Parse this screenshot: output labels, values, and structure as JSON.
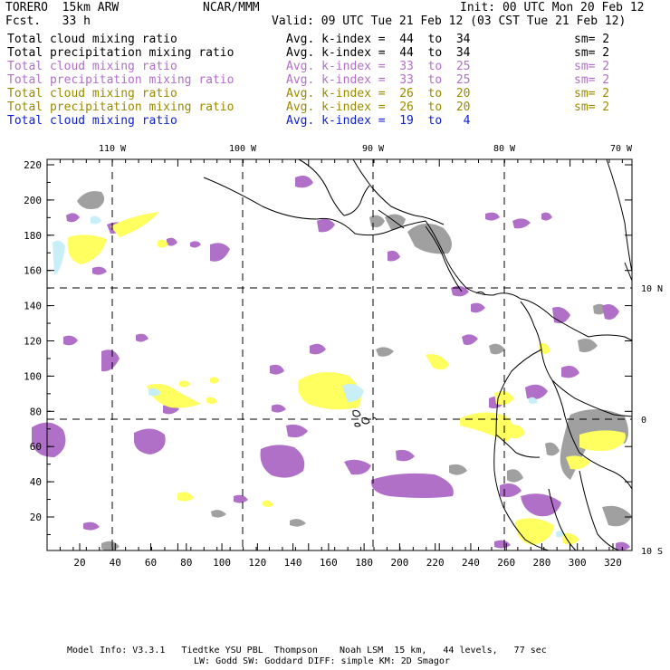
{
  "header": {
    "model": "TORERO  15km ARW",
    "org": "NCAR/MMM",
    "init": "Init: 00 UTC Mon 20 Feb 12",
    "fcst": "Fcst.   33 h",
    "valid": "Valid: 09 UTC Tue 21 Feb 12 (03 CST Tue 21 Feb 12)"
  },
  "legend": [
    {
      "field": "Total cloud mixing ratio",
      "range": "Avg. k-index =  44  to  34",
      "sm": "sm= 2",
      "color": "#000000"
    },
    {
      "field": "Total precipitation mixing ratio",
      "range": "Avg. k-index =  44  to  34",
      "sm": "sm= 2",
      "color": "#000000"
    },
    {
      "field": "Total cloud mixing ratio",
      "range": "Avg. k-index =  33  to  25",
      "sm": "sm= 2",
      "color": "#b070c8"
    },
    {
      "field": "Total precipitation mixing ratio",
      "range": "Avg. k-index =  33  to  25",
      "sm": "sm= 2",
      "color": "#b070c8"
    },
    {
      "field": "Total cloud mixing ratio",
      "range": "Avg. k-index =  26  to  20",
      "sm": "sm= 2",
      "color": "#9a8a00"
    },
    {
      "field": "Total precipitation mixing ratio",
      "range": "Avg. k-index =  26  to  20",
      "sm": "sm= 2",
      "color": "#9a8a00"
    },
    {
      "field": "Total cloud mixing ratio",
      "range": "Avg. k-index =  19  to   4",
      "sm": "",
      "color": "#1020d0"
    }
  ],
  "axes": {
    "x_ticks": [
      "20",
      "40",
      "60",
      "80",
      "100",
      "120",
      "140",
      "160",
      "180",
      "200",
      "220",
      "240",
      "260",
      "280",
      "300",
      "320"
    ],
    "y_ticks": [
      "20",
      "40",
      "60",
      "80",
      "100",
      "120",
      "140",
      "160",
      "180",
      "200",
      "220"
    ],
    "lon_labels": [
      "110 W",
      "100 W",
      "90 W",
      "80 W",
      "70 W"
    ],
    "lat_labels": [
      "10 N",
      "0",
      "10 S"
    ]
  },
  "colors": {
    "gray": "#a0a0a0",
    "purple": "#b070c8",
    "yellow": "#ffff60",
    "lightblue": "#c8eef8"
  },
  "footer": {
    "line1": "Model Info: V3.3.1   Tiedtke YSU PBL  Thompson    Noah LSM  15 km,   44 levels,   77 sec",
    "line2": "LW: Godd SW: Goddard DIFF: simple KM: 2D Smagor"
  }
}
